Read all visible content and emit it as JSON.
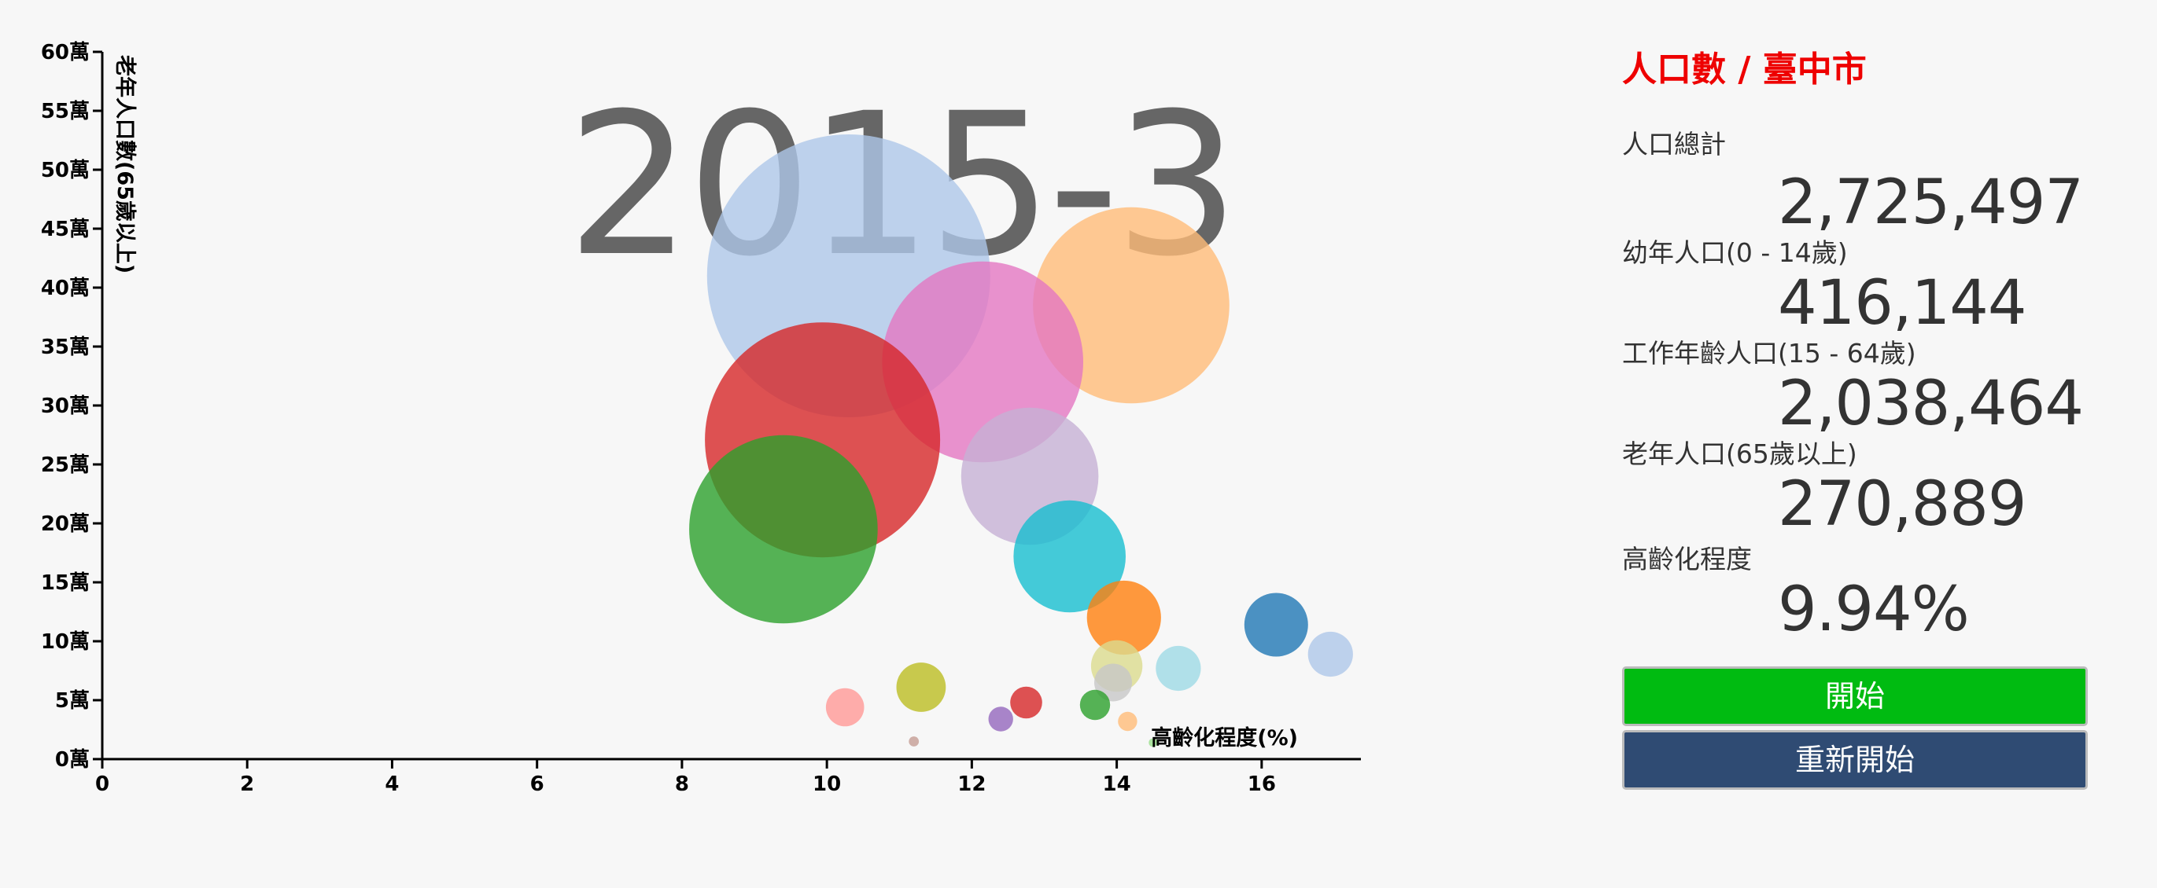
{
  "chart_data": {
    "type": "scatter",
    "title": "2015-3",
    "xlabel": "高齡化程度(%)",
    "ylabel": "老年人口數(65歲以上)",
    "xlim": [
      0,
      17.5
    ],
    "ylim": [
      0,
      600000
    ],
    "x_ticks": [
      0,
      2,
      4,
      6,
      8,
      10,
      12,
      14,
      16
    ],
    "x_tick_labels": [
      "0",
      "2",
      "4",
      "6",
      "8",
      "10",
      "12",
      "14",
      "16"
    ],
    "y_ticks": [
      0,
      50000,
      100000,
      150000,
      200000,
      250000,
      300000,
      350000,
      400000,
      450000,
      500000,
      550000,
      600000
    ],
    "y_tick_labels": [
      "0萬",
      "5萬",
      "10萬",
      "15萬",
      "20萬",
      "25萬",
      "30萬",
      "35萬",
      "40萬",
      "45萬",
      "50萬",
      "55萬",
      "60萬"
    ],
    "grid": false,
    "points": [
      {
        "x": 10.3,
        "y": 410000,
        "size": 3950000,
        "color": "#aec7e8"
      },
      {
        "x": 14.2,
        "y": 385000,
        "size": 1900000,
        "color": "#ffbb78"
      },
      {
        "x": 12.15,
        "y": 337000,
        "size": 1990000,
        "color": "#e377c2"
      },
      {
        "x": 9.94,
        "y": 270889,
        "size": 2725497,
        "color": "#d62728"
      },
      {
        "x": 12.8,
        "y": 240000,
        "size": 930000,
        "color": "#c5b0d5"
      },
      {
        "x": 9.4,
        "y": 195000,
        "size": 1750000,
        "color": "#2ca02c"
      },
      {
        "x": 13.35,
        "y": 172000,
        "size": 620000,
        "color": "#17becf"
      },
      {
        "x": 14.1,
        "y": 120000,
        "size": 270000,
        "color": "#ff7f0e"
      },
      {
        "x": 16.2,
        "y": 114000,
        "size": 200000,
        "color": "#1f77b4"
      },
      {
        "x": 16.95,
        "y": 89000,
        "size": 100000,
        "color": "#aec7e8"
      },
      {
        "x": 14.85,
        "y": 77000,
        "size": 100000,
        "color": "#9edae5"
      },
      {
        "x": 14.0,
        "y": 79000,
        "size": 130000,
        "color": "#dbdb8d"
      },
      {
        "x": 13.95,
        "y": 65000,
        "size": 70000,
        "color": "#c7c7c7"
      },
      {
        "x": 11.3,
        "y": 61000,
        "size": 120000,
        "color": "#bcbd22"
      },
      {
        "x": 12.75,
        "y": 48000,
        "size": 50000,
        "color": "#d62728"
      },
      {
        "x": 13.7,
        "y": 46000,
        "size": 45000,
        "color": "#2ca02c"
      },
      {
        "x": 10.25,
        "y": 44000,
        "size": 72000,
        "color": "#ff9896"
      },
      {
        "x": 12.4,
        "y": 34000,
        "size": 30000,
        "color": "#9467bd"
      },
      {
        "x": 14.15,
        "y": 32000,
        "size": 18000,
        "color": "#ffbb78"
      },
      {
        "x": 11.2,
        "y": 15000,
        "size": 5000,
        "color": "#c49c94"
      },
      {
        "x": 14.5,
        "y": 14000,
        "size": 3500,
        "color": "#98df8a"
      }
    ]
  },
  "panel": {
    "title": "人口數 / 臺中市",
    "title_color": "#ee0000",
    "stats": [
      {
        "label": "人口總計",
        "value": "2,725,497"
      },
      {
        "label": "幼年人口(0 - 14歲)",
        "value": "416,144"
      },
      {
        "label": "工作年齡人口(15 - 64歲)",
        "value": "2,038,464"
      },
      {
        "label": "老年人口(65歲以上)",
        "value": "270,889"
      },
      {
        "label": "高齡化程度",
        "value": "9.94%"
      }
    ],
    "start_label": "開始",
    "restart_label": "重新開始",
    "start_color": "#00bb11",
    "restart_color": "#2f4b73"
  }
}
